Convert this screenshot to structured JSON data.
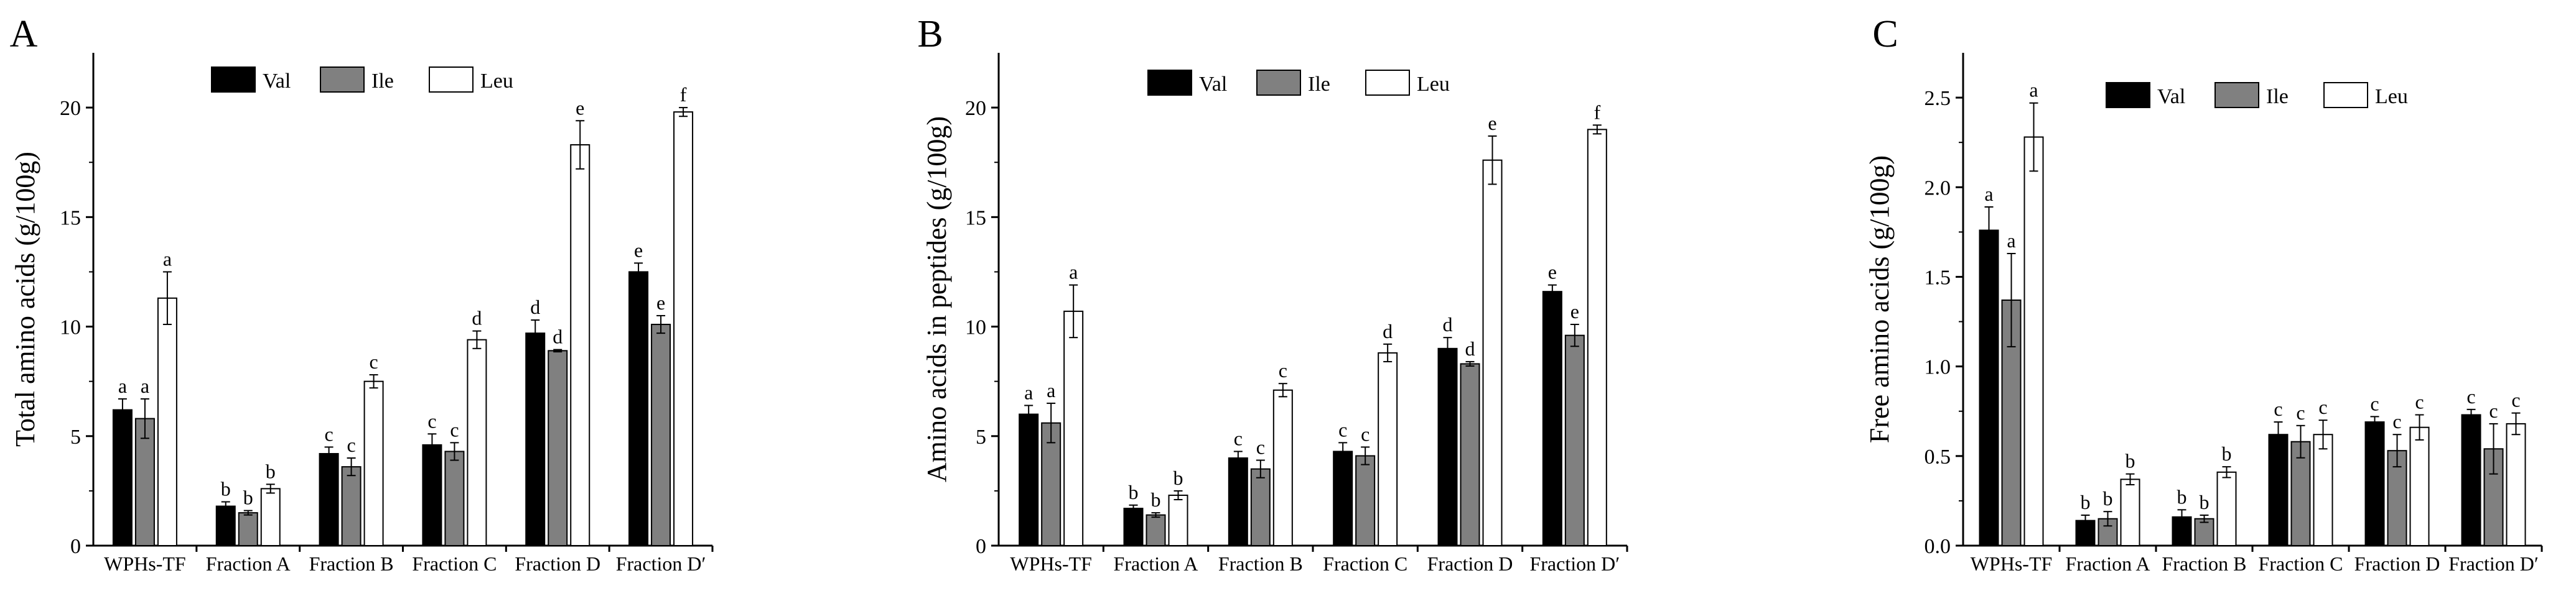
{
  "figure": {
    "series_names": [
      "Val",
      "Ile",
      "Leu"
    ],
    "series_colors": [
      "#000000",
      "#808080",
      "#ffffff"
    ]
  },
  "chart_data": [
    {
      "type": "bar",
      "panel_label": "A",
      "title": "",
      "xlabel": "",
      "ylabel": "Total amino acids (g/100g)",
      "ylim": [
        0,
        22.5
      ],
      "yticks": [
        0,
        5,
        10,
        15,
        20
      ],
      "ytick_labels": [
        "0",
        "5",
        "10",
        "15",
        "20"
      ],
      "categories": [
        "WPHs-TF",
        "Fraction A",
        "Fraction B",
        "Fraction C",
        "Fraction D",
        "Fraction D′"
      ],
      "legend": "top",
      "series": [
        {
          "name": "Val",
          "color": "#000000",
          "values": [
            6.2,
            1.8,
            4.2,
            4.6,
            9.7,
            12.5
          ],
          "errors": [
            0.5,
            0.2,
            0.3,
            0.5,
            0.6,
            0.4
          ],
          "letters": [
            "a",
            "b",
            "c",
            "c",
            "d",
            "e"
          ]
        },
        {
          "name": "Ile",
          "color": "#808080",
          "values": [
            5.8,
            1.5,
            3.6,
            4.3,
            8.9,
            10.1
          ],
          "errors": [
            0.9,
            0.1,
            0.4,
            0.4,
            0.05,
            0.4
          ],
          "letters": [
            "a",
            "b",
            "c",
            "c",
            "d",
            "e"
          ]
        },
        {
          "name": "Leu",
          "color": "#ffffff",
          "values": [
            11.3,
            2.6,
            7.5,
            9.4,
            18.3,
            19.8
          ],
          "errors": [
            1.2,
            0.2,
            0.3,
            0.4,
            1.1,
            0.2
          ],
          "letters": [
            "a",
            "b",
            "c",
            "d",
            "e",
            "f"
          ]
        }
      ]
    },
    {
      "type": "bar",
      "panel_label": "B",
      "title": "",
      "xlabel": "",
      "ylabel": "Amino acids in peptides (g/100g)",
      "ylim": [
        0,
        22.5
      ],
      "yticks": [
        0,
        5,
        10,
        15,
        20
      ],
      "ytick_labels": [
        "0",
        "5",
        "10",
        "15",
        "20"
      ],
      "categories": [
        "WPHs-TF",
        "Fraction A",
        "Fraction B",
        "Fraction C",
        "Fraction D",
        "Fraction D′"
      ],
      "legend": "top",
      "series": [
        {
          "name": "Val",
          "color": "#000000",
          "values": [
            6.0,
            1.7,
            4.0,
            4.3,
            9.0,
            11.6
          ],
          "errors": [
            0.4,
            0.15,
            0.3,
            0.4,
            0.5,
            0.3
          ],
          "letters": [
            "a",
            "b",
            "c",
            "c",
            "d",
            "e"
          ]
        },
        {
          "name": "Ile",
          "color": "#808080",
          "values": [
            5.6,
            1.4,
            3.5,
            4.1,
            8.3,
            9.6
          ],
          "errors": [
            0.9,
            0.1,
            0.4,
            0.4,
            0.1,
            0.5
          ],
          "letters": [
            "a",
            "b",
            "c",
            "c",
            "d",
            "e"
          ]
        },
        {
          "name": "Leu",
          "color": "#ffffff",
          "values": [
            10.7,
            2.3,
            7.1,
            8.8,
            17.6,
            19.0
          ],
          "errors": [
            1.2,
            0.2,
            0.3,
            0.4,
            1.1,
            0.2
          ],
          "letters": [
            "a",
            "b",
            "c",
            "d",
            "e",
            "f"
          ]
        }
      ]
    },
    {
      "type": "bar",
      "panel_label": "C",
      "title": "",
      "xlabel": "",
      "ylabel": "Free amino acids (g/100g)",
      "ylim": [
        0,
        2.75
      ],
      "yticks": [
        0,
        0.5,
        1.0,
        1.5,
        2.0,
        2.5
      ],
      "ytick_labels": [
        "0.0",
        "0.5",
        "1.0",
        "1.5",
        "2.0",
        "2.5"
      ],
      "categories": [
        "WPHs-TF",
        "Fraction A",
        "Fraction B",
        "Fraction C",
        "Fraction D",
        "Fraction D′"
      ],
      "legend": "top",
      "series": [
        {
          "name": "Val",
          "color": "#000000",
          "values": [
            1.76,
            0.14,
            0.16,
            0.62,
            0.69,
            0.73
          ],
          "errors": [
            0.13,
            0.03,
            0.04,
            0.07,
            0.03,
            0.03
          ],
          "letters": [
            "a",
            "b",
            "b",
            "c",
            "c",
            "c"
          ]
        },
        {
          "name": "Ile",
          "color": "#808080",
          "values": [
            1.37,
            0.15,
            0.15,
            0.58,
            0.53,
            0.54
          ],
          "errors": [
            0.26,
            0.04,
            0.02,
            0.09,
            0.09,
            0.14
          ],
          "letters": [
            "a",
            "b",
            "b",
            "c",
            "c",
            "c"
          ]
        },
        {
          "name": "Leu",
          "color": "#ffffff",
          "values": [
            2.28,
            0.37,
            0.41,
            0.62,
            0.66,
            0.68
          ],
          "errors": [
            0.19,
            0.03,
            0.03,
            0.08,
            0.07,
            0.06
          ],
          "letters": [
            "a",
            "b",
            "b",
            "c",
            "c",
            "c"
          ]
        }
      ]
    }
  ]
}
